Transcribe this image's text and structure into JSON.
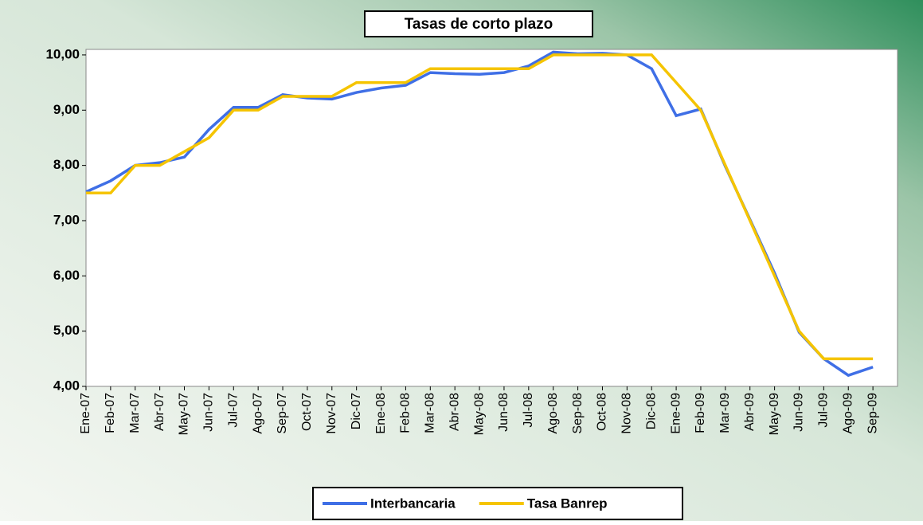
{
  "chart_data": {
    "type": "line",
    "title": "Tasas de corto plazo",
    "categories": [
      "Ene-07",
      "Feb-07",
      "Mar-07",
      "Abr-07",
      "May-07",
      "Jun-07",
      "Jul-07",
      "Ago-07",
      "Sep-07",
      "Oct-07",
      "Nov-07",
      "Dic-07",
      "Ene-08",
      "Feb-08",
      "Mar-08",
      "Abr-08",
      "May-08",
      "Jun-08",
      "Jul-08",
      "Ago-08",
      "Sep-08",
      "Oct-08",
      "Nov-08",
      "Dic-08",
      "Ene-09",
      "Feb-09",
      "Mar-09",
      "Abr-09",
      "May-09",
      "Jun-09",
      "Jul-09",
      "Ago-09",
      "Sep-09"
    ],
    "series": [
      {
        "name": "Interbancaria",
        "color": "#3f6fe6",
        "values": [
          7.52,
          7.72,
          8.0,
          8.05,
          8.15,
          8.65,
          9.05,
          9.05,
          9.28,
          9.22,
          9.2,
          9.32,
          9.4,
          9.45,
          9.68,
          9.66,
          9.65,
          9.68,
          9.8,
          10.05,
          10.02,
          10.03,
          10.0,
          9.75,
          8.9,
          9.02,
          7.98,
          7.02,
          6.05,
          4.98,
          4.5,
          4.2,
          4.35
        ]
      },
      {
        "name": "Tasa Banrep",
        "color": "#f5c400",
        "values": [
          7.5,
          7.5,
          8.0,
          8.0,
          8.25,
          8.5,
          9.0,
          9.0,
          9.25,
          9.25,
          9.25,
          9.5,
          9.5,
          9.5,
          9.75,
          9.75,
          9.75,
          9.75,
          9.75,
          10.0,
          10.0,
          10.0,
          10.0,
          10.0,
          9.5,
          9.0,
          8.0,
          7.0,
          6.0,
          5.0,
          4.5,
          4.5,
          4.5
        ]
      }
    ],
    "ylim": [
      4,
      10.1
    ],
    "yticks": [
      {
        "value": 4,
        "label": "4,00"
      },
      {
        "value": 5,
        "label": "5,00"
      },
      {
        "value": 6,
        "label": "6,00"
      },
      {
        "value": 7,
        "label": "7,00"
      },
      {
        "value": 8,
        "label": "8,00"
      },
      {
        "value": 9,
        "label": "9,00"
      },
      {
        "value": 10,
        "label": "10,00"
      }
    ],
    "grid": false,
    "legend": "bottom"
  }
}
